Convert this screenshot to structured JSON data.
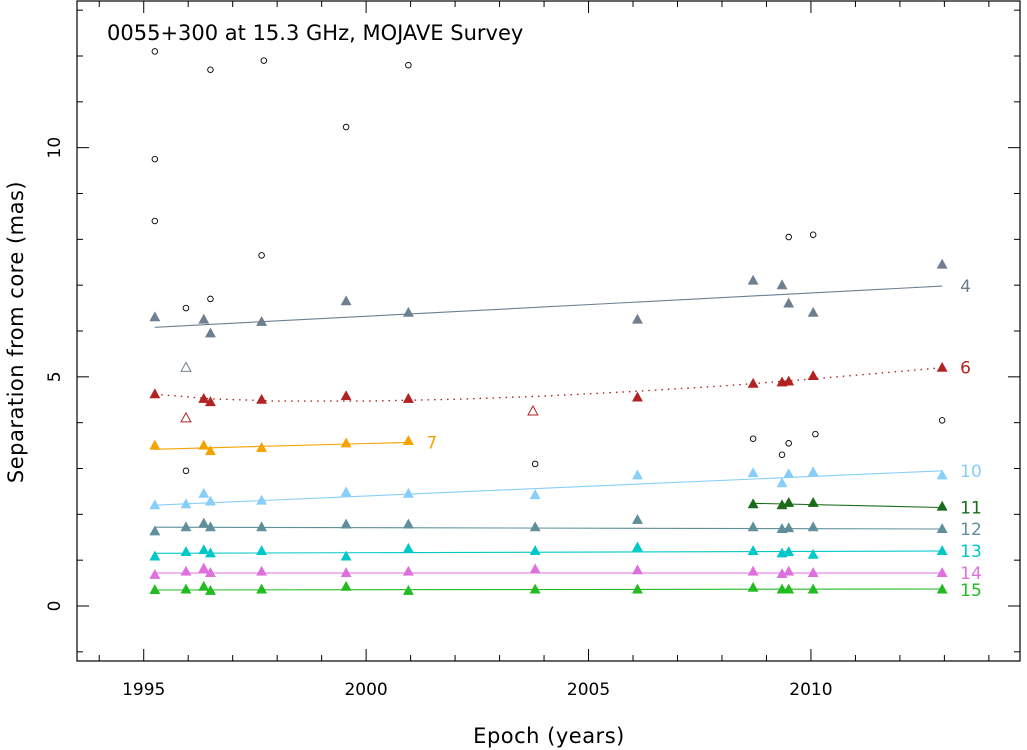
{
  "chart_data": {
    "type": "scatter",
    "title": "0055+300 at 15.3 GHz, MOJAVE Survey",
    "xlabel": "Epoch (years)",
    "ylabel": "Separation from core (mas)",
    "xlim": [
      1993.5,
      2014.7
    ],
    "ylim": [
      -1.2,
      13.2
    ],
    "xticks": [
      1995,
      2000,
      2005,
      2010
    ],
    "yticks": [
      0,
      5,
      10
    ],
    "other_points": [
      {
        "x": 1995.25,
        "y": 12.1
      },
      {
        "x": 1995.25,
        "y": 9.75
      },
      {
        "x": 1995.25,
        "y": 8.4
      },
      {
        "x": 1996.5,
        "y": 11.7
      },
      {
        "x": 1997.7,
        "y": 11.9
      },
      {
        "x": 1999.55,
        "y": 10.45
      },
      {
        "x": 2000.95,
        "y": 11.8
      },
      {
        "x": 1995.95,
        "y": 6.5
      },
      {
        "x": 1996.5,
        "y": 6.7
      },
      {
        "x": 1997.65,
        "y": 7.65
      },
      {
        "x": 1995.95,
        "y": 2.95
      },
      {
        "x": 2003.8,
        "y": 3.1
      },
      {
        "x": 2008.7,
        "y": 3.65
      },
      {
        "x": 2009.35,
        "y": 3.3
      },
      {
        "x": 2009.5,
        "y": 3.55
      },
      {
        "x": 2010.1,
        "y": 3.75
      },
      {
        "x": 2009.5,
        "y": 8.05
      },
      {
        "x": 2010.05,
        "y": 8.1
      },
      {
        "x": 2012.95,
        "y": 4.05
      }
    ],
    "series": [
      {
        "name": "4",
        "color": "#6e7f90",
        "points": [
          {
            "x": 1995.25,
            "y": 6.3
          },
          {
            "x": 1995.95,
            "y": 5.2,
            "open": true
          },
          {
            "x": 1996.35,
            "y": 6.25
          },
          {
            "x": 1996.5,
            "y": 5.95
          },
          {
            "x": 1997.65,
            "y": 6.2
          },
          {
            "x": 1999.55,
            "y": 6.65
          },
          {
            "x": 2000.95,
            "y": 6.4
          },
          {
            "x": 2006.1,
            "y": 6.25
          },
          {
            "x": 2008.7,
            "y": 7.1
          },
          {
            "x": 2009.35,
            "y": 7.0
          },
          {
            "x": 2009.5,
            "y": 6.6
          },
          {
            "x": 2010.05,
            "y": 6.4
          },
          {
            "x": 2012.95,
            "y": 7.45
          }
        ],
        "fit": [
          [
            1995.25,
            6.08
          ],
          [
            2012.95,
            6.98
          ]
        ],
        "fit_style": "solid"
      },
      {
        "name": "6",
        "color": "#b22222",
        "points": [
          {
            "x": 1995.25,
            "y": 4.62
          },
          {
            "x": 1995.95,
            "y": 4.1,
            "open": true
          },
          {
            "x": 1996.35,
            "y": 4.52
          },
          {
            "x": 1996.5,
            "y": 4.45
          },
          {
            "x": 1997.65,
            "y": 4.5
          },
          {
            "x": 1999.55,
            "y": 4.58
          },
          {
            "x": 2000.95,
            "y": 4.52
          },
          {
            "x": 2003.75,
            "y": 4.25,
            "open": true
          },
          {
            "x": 2006.1,
            "y": 4.55
          },
          {
            "x": 2008.7,
            "y": 4.85
          },
          {
            "x": 2009.35,
            "y": 4.88
          },
          {
            "x": 2009.5,
            "y": 4.9
          },
          {
            "x": 2010.05,
            "y": 5.02
          },
          {
            "x": 2012.95,
            "y": 5.2
          }
        ],
        "fit": [
          [
            1995.25,
            4.62
          ],
          [
            1996.5,
            4.52
          ],
          [
            1998.0,
            4.47
          ],
          [
            2000.0,
            4.47
          ],
          [
            2002.0,
            4.51
          ],
          [
            2004.0,
            4.58
          ],
          [
            2006.0,
            4.68
          ],
          [
            2008.0,
            4.8
          ],
          [
            2010.0,
            4.95
          ],
          [
            2012.95,
            5.2
          ]
        ],
        "fit_style": "dotted"
      },
      {
        "name": "7",
        "color": "#f5a300",
        "points": [
          {
            "x": 1995.25,
            "y": 3.5
          },
          {
            "x": 1996.35,
            "y": 3.5
          },
          {
            "x": 1996.5,
            "y": 3.38
          },
          {
            "x": 1997.65,
            "y": 3.45
          },
          {
            "x": 1999.55,
            "y": 3.55
          },
          {
            "x": 2000.95,
            "y": 3.6
          }
        ],
        "fit": [
          [
            1995.25,
            3.42
          ],
          [
            2000.95,
            3.57
          ]
        ],
        "fit_style": "solid"
      },
      {
        "name": "10",
        "color": "#87cefa",
        "points": [
          {
            "x": 1995.25,
            "y": 2.2
          },
          {
            "x": 1995.95,
            "y": 2.22
          },
          {
            "x": 1996.35,
            "y": 2.45
          },
          {
            "x": 1996.5,
            "y": 2.28
          },
          {
            "x": 1997.65,
            "y": 2.3
          },
          {
            "x": 1999.55,
            "y": 2.48
          },
          {
            "x": 2000.95,
            "y": 2.45
          },
          {
            "x": 2003.8,
            "y": 2.42
          },
          {
            "x": 2006.1,
            "y": 2.85
          },
          {
            "x": 2008.7,
            "y": 2.9
          },
          {
            "x": 2009.35,
            "y": 2.68
          },
          {
            "x": 2009.5,
            "y": 2.88
          },
          {
            "x": 2010.05,
            "y": 2.92
          },
          {
            "x": 2012.95,
            "y": 2.85
          }
        ],
        "fit": [
          [
            1995.25,
            2.2
          ],
          [
            2012.95,
            2.95
          ]
        ],
        "fit_style": "solid"
      },
      {
        "name": "11",
        "color": "#1a6b1a",
        "points": [
          {
            "x": 2008.7,
            "y": 2.22
          },
          {
            "x": 2009.35,
            "y": 2.2
          },
          {
            "x": 2009.5,
            "y": 2.25
          },
          {
            "x": 2010.05,
            "y": 2.25
          },
          {
            "x": 2012.95,
            "y": 2.17
          }
        ],
        "fit": [
          [
            2008.7,
            2.24
          ],
          [
            2012.95,
            2.15
          ]
        ],
        "fit_style": "solid"
      },
      {
        "name": "12",
        "color": "#5f8f9a",
        "points": [
          {
            "x": 1995.25,
            "y": 1.63
          },
          {
            "x": 1995.95,
            "y": 1.72
          },
          {
            "x": 1996.35,
            "y": 1.8
          },
          {
            "x": 1996.5,
            "y": 1.72
          },
          {
            "x": 1997.65,
            "y": 1.72
          },
          {
            "x": 1999.55,
            "y": 1.78
          },
          {
            "x": 2000.95,
            "y": 1.78
          },
          {
            "x": 2003.8,
            "y": 1.72
          },
          {
            "x": 2006.1,
            "y": 1.88
          },
          {
            "x": 2008.7,
            "y": 1.72
          },
          {
            "x": 2009.35,
            "y": 1.68
          },
          {
            "x": 2009.5,
            "y": 1.7
          },
          {
            "x": 2010.05,
            "y": 1.72
          },
          {
            "x": 2012.95,
            "y": 1.68
          }
        ],
        "fit": [
          [
            1995.25,
            1.72
          ],
          [
            2012.95,
            1.68
          ]
        ],
        "fit_style": "solid"
      },
      {
        "name": "13",
        "color": "#00c8c8",
        "points": [
          {
            "x": 1995.25,
            "y": 1.08
          },
          {
            "x": 1995.95,
            "y": 1.18
          },
          {
            "x": 1996.35,
            "y": 1.22
          },
          {
            "x": 1996.5,
            "y": 1.15
          },
          {
            "x": 1997.65,
            "y": 1.2
          },
          {
            "x": 1999.55,
            "y": 1.08
          },
          {
            "x": 2000.95,
            "y": 1.25
          },
          {
            "x": 2003.8,
            "y": 1.2
          },
          {
            "x": 2006.1,
            "y": 1.28
          },
          {
            "x": 2008.7,
            "y": 1.2
          },
          {
            "x": 2009.35,
            "y": 1.15
          },
          {
            "x": 2009.5,
            "y": 1.18
          },
          {
            "x": 2010.05,
            "y": 1.12
          },
          {
            "x": 2012.95,
            "y": 1.2
          }
        ],
        "fit": [
          [
            1995.25,
            1.15
          ],
          [
            2012.95,
            1.2
          ]
        ],
        "fit_style": "solid"
      },
      {
        "name": "14",
        "color": "#dd70dd",
        "points": [
          {
            "x": 1995.25,
            "y": 0.68
          },
          {
            "x": 1995.95,
            "y": 0.75
          },
          {
            "x": 1996.35,
            "y": 0.82
          },
          {
            "x": 1996.5,
            "y": 0.72
          },
          {
            "x": 1997.65,
            "y": 0.75
          },
          {
            "x": 1999.55,
            "y": 0.72
          },
          {
            "x": 2000.95,
            "y": 0.75
          },
          {
            "x": 2003.8,
            "y": 0.8
          },
          {
            "x": 2006.1,
            "y": 0.78
          },
          {
            "x": 2008.7,
            "y": 0.75
          },
          {
            "x": 2009.35,
            "y": 0.7
          },
          {
            "x": 2009.5,
            "y": 0.75
          },
          {
            "x": 2010.05,
            "y": 0.72
          },
          {
            "x": 2012.95,
            "y": 0.72
          }
        ],
        "fit": [
          [
            1995.25,
            0.72
          ],
          [
            2012.95,
            0.72
          ]
        ],
        "fit_style": "solid"
      },
      {
        "name": "15",
        "color": "#22bb22",
        "points": [
          {
            "x": 1995.25,
            "y": 0.35
          },
          {
            "x": 1995.95,
            "y": 0.36
          },
          {
            "x": 1996.35,
            "y": 0.42
          },
          {
            "x": 1996.5,
            "y": 0.33
          },
          {
            "x": 1997.65,
            "y": 0.36
          },
          {
            "x": 1999.55,
            "y": 0.42
          },
          {
            "x": 2000.95,
            "y": 0.33
          },
          {
            "x": 2003.8,
            "y": 0.36
          },
          {
            "x": 2006.1,
            "y": 0.36
          },
          {
            "x": 2008.7,
            "y": 0.4
          },
          {
            "x": 2009.35,
            "y": 0.36
          },
          {
            "x": 2009.5,
            "y": 0.36
          },
          {
            "x": 2010.05,
            "y": 0.36
          },
          {
            "x": 2012.95,
            "y": 0.36
          }
        ],
        "fit": [
          [
            1995.25,
            0.35
          ],
          [
            2012.95,
            0.37
          ]
        ],
        "fit_style": "solid"
      }
    ]
  }
}
